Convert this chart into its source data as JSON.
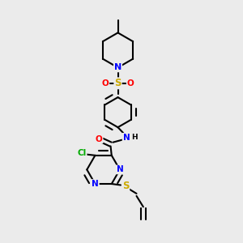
{
  "bg_color": "#ebebeb",
  "bond_color": "#000000",
  "bond_width": 1.5,
  "atom_colors": {
    "N": "#0000ff",
    "O": "#ff0000",
    "S": "#ccaa00",
    "Cl": "#00aa00",
    "NH": "#000000",
    "H": "#000000",
    "C": "#000000"
  },
  "font_size": 7.5,
  "figsize": [
    3.0,
    3.0
  ],
  "dpi": 100,
  "xlim": [
    0,
    10
  ],
  "ylim": [
    0,
    10
  ]
}
